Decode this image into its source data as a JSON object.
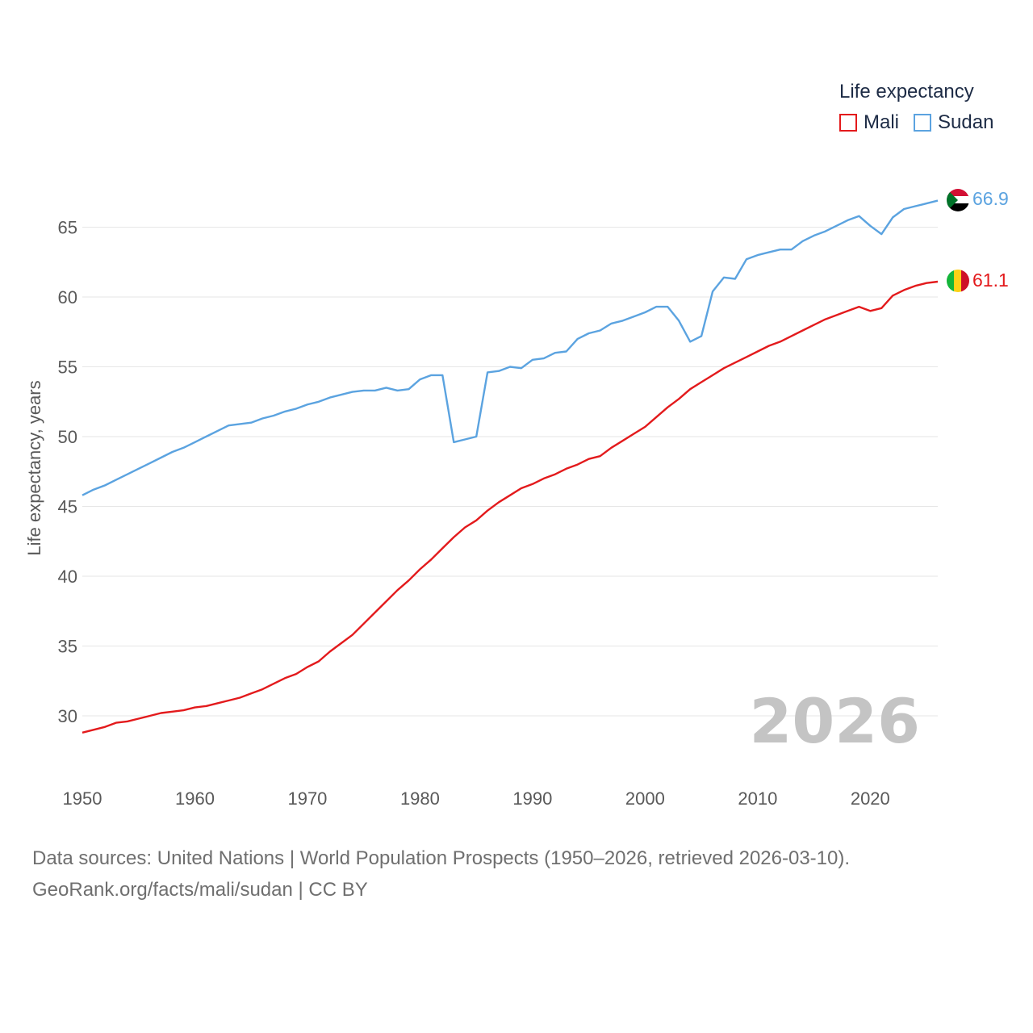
{
  "chart_data": {
    "type": "line",
    "title": "",
    "xlabel": "",
    "ylabel": "Life expectancy, years",
    "xlim": [
      1950,
      2026
    ],
    "ylim": [
      25.5,
      69
    ],
    "x_ticks": [
      1950,
      1960,
      1970,
      1980,
      1990,
      2000,
      2010,
      2020
    ],
    "y_ticks": [
      30,
      35,
      40,
      45,
      50,
      55,
      60,
      65
    ],
    "grid": true,
    "legend_title": "Life expectancy",
    "legend_position": "top-right",
    "watermark_year": "2026",
    "x": [
      1950,
      1951,
      1952,
      1953,
      1954,
      1955,
      1956,
      1957,
      1958,
      1959,
      1960,
      1961,
      1962,
      1963,
      1964,
      1965,
      1966,
      1967,
      1968,
      1969,
      1970,
      1971,
      1972,
      1973,
      1974,
      1975,
      1976,
      1977,
      1978,
      1979,
      1980,
      1981,
      1982,
      1983,
      1984,
      1985,
      1986,
      1987,
      1988,
      1989,
      1990,
      1991,
      1992,
      1993,
      1994,
      1995,
      1996,
      1997,
      1998,
      1999,
      2000,
      2001,
      2002,
      2003,
      2004,
      2005,
      2006,
      2007,
      2008,
      2009,
      2010,
      2011,
      2012,
      2013,
      2014,
      2015,
      2016,
      2017,
      2018,
      2019,
      2020,
      2021,
      2022,
      2023,
      2024,
      2025,
      2026
    ],
    "series": [
      {
        "name": "Mali",
        "color": "#e31a1c",
        "end_label": "61.1",
        "values": [
          28.8,
          29.0,
          29.2,
          29.5,
          29.6,
          29.8,
          30.0,
          30.2,
          30.3,
          30.4,
          30.6,
          30.7,
          30.9,
          31.1,
          31.3,
          31.6,
          31.9,
          32.3,
          32.7,
          33.0,
          33.5,
          33.9,
          34.6,
          35.2,
          35.8,
          36.6,
          37.4,
          38.2,
          39.0,
          39.7,
          40.5,
          41.2,
          42.0,
          42.8,
          43.5,
          44.0,
          44.7,
          45.3,
          45.8,
          46.3,
          46.6,
          47.0,
          47.3,
          47.7,
          48.0,
          48.4,
          48.6,
          49.2,
          49.7,
          50.2,
          50.7,
          51.4,
          52.1,
          52.7,
          53.4,
          53.9,
          54.4,
          54.9,
          55.3,
          55.7,
          56.1,
          56.5,
          56.8,
          57.2,
          57.6,
          58.0,
          58.4,
          58.7,
          59.0,
          59.3,
          59.0,
          59.2,
          60.1,
          60.5,
          60.8,
          61.0,
          61.1
        ]
      },
      {
        "name": "Sudan",
        "color": "#5ba3e0",
        "end_label": "66.9",
        "values": [
          45.8,
          46.2,
          46.5,
          46.9,
          47.3,
          47.7,
          48.1,
          48.5,
          48.9,
          49.2,
          49.6,
          50.0,
          50.4,
          50.8,
          50.9,
          51.0,
          51.3,
          51.5,
          51.8,
          52.0,
          52.3,
          52.5,
          52.8,
          53.0,
          53.2,
          53.3,
          53.3,
          53.5,
          53.3,
          53.4,
          54.1,
          54.4,
          54.4,
          49.6,
          49.8,
          50.0,
          54.6,
          54.7,
          55.0,
          54.9,
          55.5,
          55.6,
          56.0,
          56.1,
          57.0,
          57.4,
          57.6,
          58.1,
          58.3,
          58.6,
          58.9,
          59.3,
          59.3,
          58.3,
          56.8,
          57.2,
          60.4,
          61.4,
          61.3,
          62.7,
          63.0,
          63.2,
          63.4,
          63.4,
          64.0,
          64.4,
          64.7,
          65.1,
          65.5,
          65.8,
          65.1,
          64.5,
          65.7,
          66.3,
          66.5,
          66.7,
          66.9
        ]
      }
    ]
  },
  "footer": {
    "source_line": "Data sources: United Nations | World Population Prospects (1950–2026, retrieved 2026-03-10).",
    "attribution_line": "GeoRank.org/facts/mali/sudan | CC BY"
  }
}
